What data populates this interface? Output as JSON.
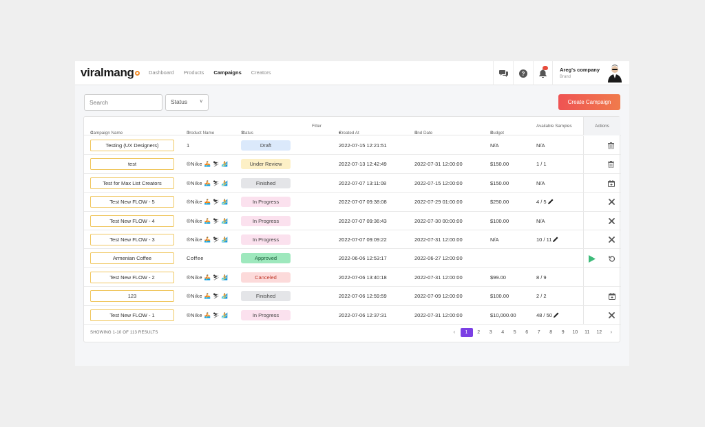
{
  "brand": {
    "logo_text": "viralmang"
  },
  "nav": {
    "items": [
      "Dashboard",
      "Products",
      "Campaigns",
      "Creators"
    ],
    "active": "Campaigns"
  },
  "header": {
    "company_name": "Areg's company",
    "company_role": "Brand"
  },
  "toolbar": {
    "search_placeholder": "Search",
    "status_label": "Status",
    "status_chevron": "v",
    "create_label": "Create Campaign"
  },
  "table": {
    "columns": {
      "name": "Campaign Name",
      "product": "Product Name",
      "status": "Status",
      "filter": "Filter",
      "created": "Created At",
      "end": "End Date",
      "budget": "Budget",
      "samples": "Available Samples",
      "actions": "Actions"
    },
    "rows": [
      {
        "name": "Testing (UX Designers)",
        "product": "1",
        "status": "Draft",
        "created": "2022-07-15 12:21:51",
        "end": "",
        "budget": "N/A",
        "samples": "N/A"
      },
      {
        "name": "test",
        "product": "®Nike 🚣 ⛷ 🏄",
        "status": "Under Review",
        "created": "2022-07-13 12:42:49",
        "end": "2022-07-31 12:00:00",
        "budget": "$150.00",
        "samples": "1 / 1"
      },
      {
        "name": "Test for Max List Creators",
        "product": "®Nike 🚣 ⛷ 🏄",
        "status": "Finished",
        "created": "2022-07-07 13:11:08",
        "end": "2022-07-15 12:00:00",
        "budget": "$150.00",
        "samples": "N/A"
      },
      {
        "name": "Test New FLOW - 5",
        "product": "®Nike 🚣 ⛷ 🏄",
        "status": "In Progress",
        "created": "2022-07-07 09:38:08",
        "end": "2022-07-29 01:00:00",
        "budget": "$250.00",
        "samples": "4 / 5"
      },
      {
        "name": "Test New FLOW - 4",
        "product": "®Nike 🚣 ⛷ 🏄",
        "status": "In Progress",
        "created": "2022-07-07 09:36:43",
        "end": "2022-07-30 00:00:00",
        "budget": "$100.00",
        "samples": "N/A"
      },
      {
        "name": "Test New FLOW - 3",
        "product": "®Nike 🚣 ⛷ 🏄",
        "status": "In Progress",
        "created": "2022-07-07 09:09:22",
        "end": "2022-07-31 12:00:00",
        "budget": "N/A",
        "samples": "10 / 11"
      },
      {
        "name": "Armenian Coffee",
        "product": "Coffee",
        "status": "Approved",
        "created": "2022-06-06 12:53:17",
        "end": "2022-06-27 12:00:00",
        "budget": "",
        "samples": ""
      },
      {
        "name": "Test New FLOW - 2",
        "product": "®Nike 🚣 ⛷ 🏄",
        "status": "Canceled",
        "created": "2022-07-06 13:40:18",
        "end": "2022-07-31 12:00:00",
        "budget": "$99.00",
        "samples": "8 / 9"
      },
      {
        "name": "123",
        "product": "®Nike 🚣 ⛷ 🏄",
        "status": "Finished",
        "created": "2022-07-06 12:59:59",
        "end": "2022-07-09 12:00:00",
        "budget": "$100.00",
        "samples": "2 / 2"
      },
      {
        "name": "Test New FLOW - 1",
        "product": "®Nike 🚣 ⛷ 🏄",
        "status": "In Progress",
        "created": "2022-07-06 12:37:31",
        "end": "2022-07-31 12:00:00",
        "budget": "$10,000.00",
        "samples": "48 / 50"
      }
    ]
  },
  "footer": {
    "results": "SHOWING 1-10 OF 113 RESULTS"
  },
  "pagination": {
    "prev": "‹",
    "next": "›",
    "pages": [
      "1",
      "2",
      "3",
      "4",
      "5",
      "6",
      "7",
      "8",
      "9",
      "10",
      "11",
      "12"
    ],
    "current": "1"
  },
  "colors": {
    "accent": "#7b3fe4",
    "create_start": "#ef5353",
    "create_end": "#f07b4c",
    "logo_dot": "#f28c28"
  }
}
